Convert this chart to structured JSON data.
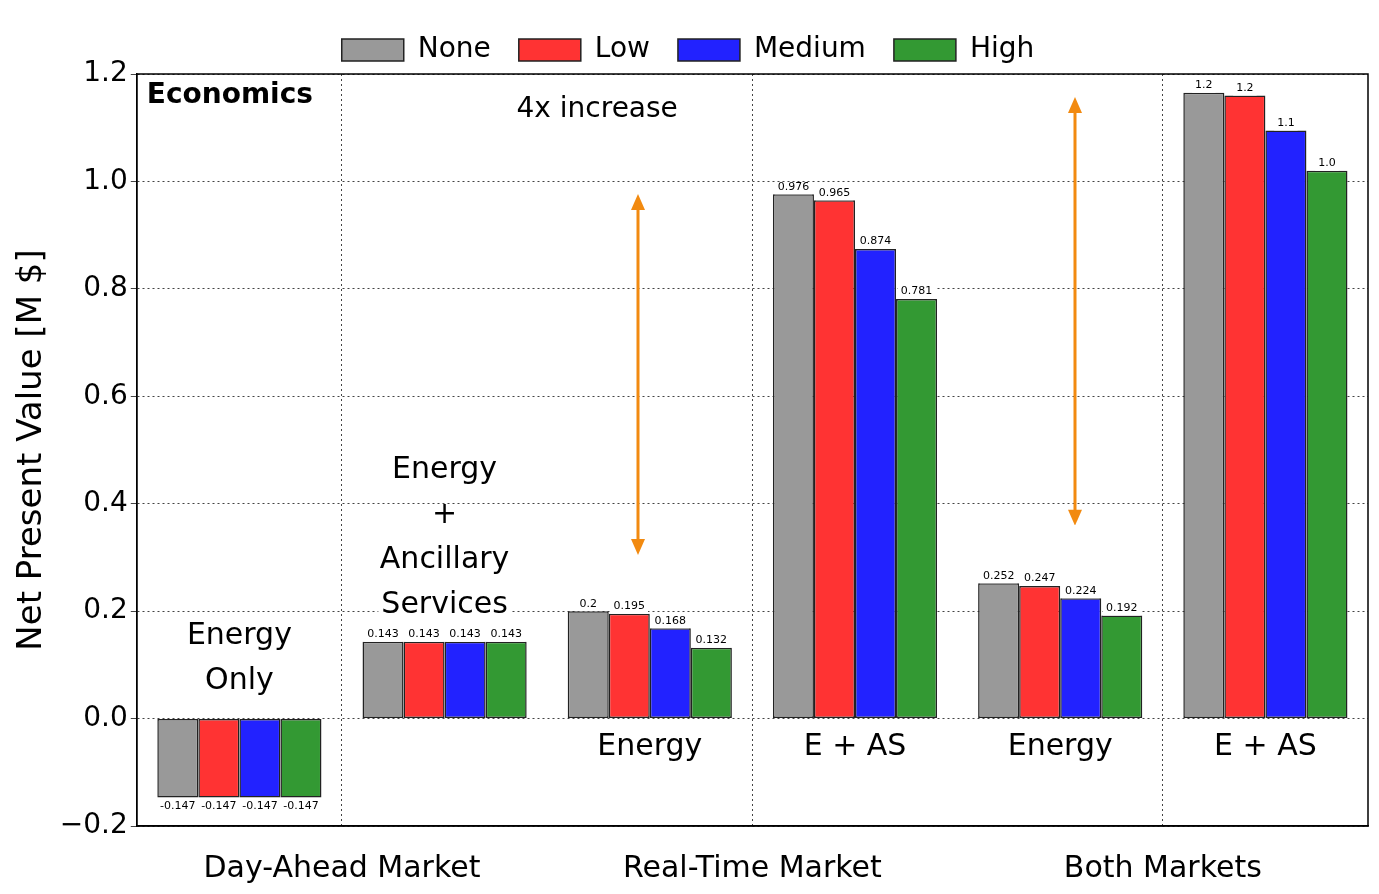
{
  "chart_data": {
    "type": "bar",
    "ylabel": "Net Present Value [M $]",
    "categories": [
      "Energy Only",
      "Energy + Ancillary Services",
      "Energy",
      "E + AS",
      "Energy",
      "E + AS"
    ],
    "series": [
      {
        "name": "None",
        "color": "#999999",
        "values": [
          -0.147,
          0.143,
          0.2,
          0.976,
          0.252,
          1.165
        ],
        "value_labels": [
          "-0.147",
          "0.143",
          "0.2",
          "0.976",
          "0.252",
          "1.2"
        ]
      },
      {
        "name": "Low",
        "color": "#ff3333",
        "values": [
          -0.147,
          0.143,
          0.195,
          0.965,
          0.247,
          1.16
        ],
        "value_labels": [
          "-0.147",
          "0.143",
          "0.195",
          "0.965",
          "0.247",
          "1.2"
        ]
      },
      {
        "name": "Medium",
        "color": "#2222ff",
        "values": [
          -0.147,
          0.143,
          0.168,
          0.874,
          0.224,
          1.095
        ],
        "value_labels": [
          "-0.147",
          "0.143",
          "0.168",
          "0.874",
          "0.224",
          "1.1"
        ]
      },
      {
        "name": "High",
        "color": "#339933",
        "values": [
          -0.147,
          0.143,
          0.132,
          0.781,
          0.192,
          1.02
        ],
        "value_labels": [
          "-0.147",
          "0.143",
          "0.132",
          "0.781",
          "0.192",
          "1.0"
        ]
      }
    ],
    "ylim": [
      -0.2,
      1.2
    ],
    "yticks": [
      {
        "value": -0.2,
        "label": "−0.2"
      },
      {
        "value": 0,
        "label": "0.0"
      },
      {
        "value": 0.2,
        "label": "0.2"
      },
      {
        "value": 0.4,
        "label": "0.4"
      },
      {
        "value": 0.6,
        "label": "0.6"
      },
      {
        "value": 0.8,
        "label": "0.8"
      },
      {
        "value": 1,
        "label": "1.0"
      },
      {
        "value": 1.2,
        "label": "1.2"
      }
    ],
    "grid": true,
    "legend": "top",
    "annotations": [
      "Economics",
      "4x increase",
      "Day-Ahead Market",
      "Real-Time Market",
      "Both Markets"
    ]
  }
}
